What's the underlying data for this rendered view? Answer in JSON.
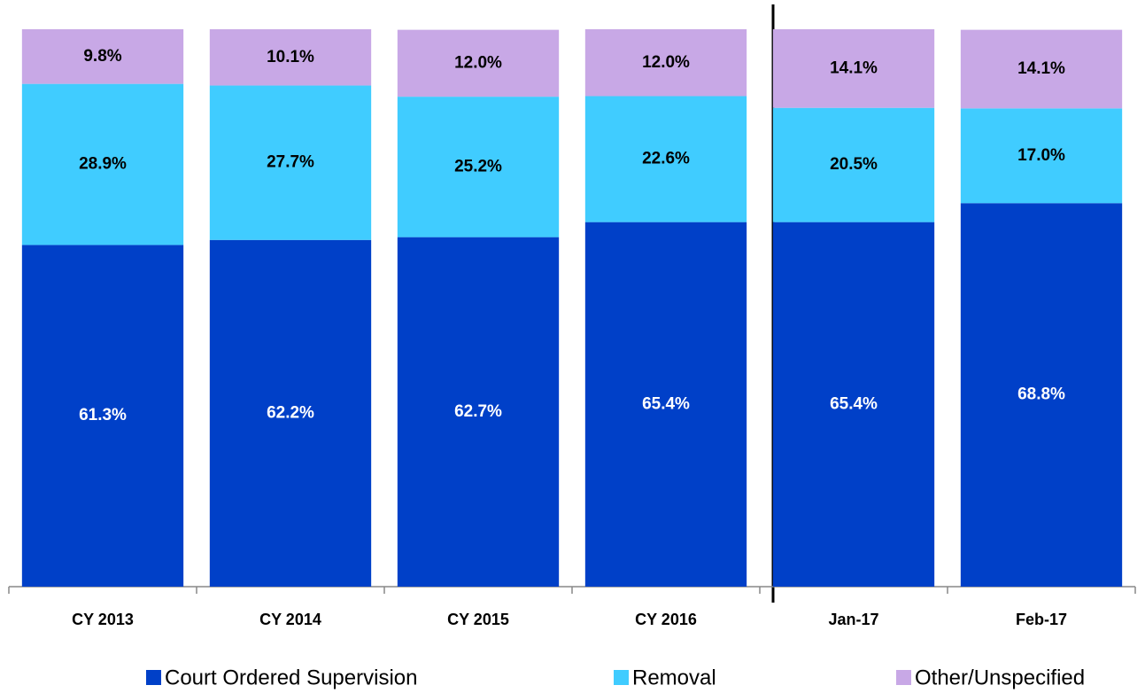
{
  "chart_data": {
    "type": "stacked_bar",
    "categories": [
      "CY 2013",
      "CY 2014",
      "CY 2015",
      "CY 2016",
      "Jan-17",
      "Feb-17"
    ],
    "series": [
      {
        "name": "Court Ordered Supervision",
        "color": "#0040c8",
        "values": [
          61.3,
          62.2,
          62.7,
          65.4,
          65.4,
          68.8
        ],
        "value_labels": [
          "61.3%",
          "62.2%",
          "62.7%",
          "65.4%",
          "65.4%",
          "68.8%"
        ]
      },
      {
        "name": "Removal",
        "color": "#40ccff",
        "values": [
          28.9,
          27.7,
          25.2,
          22.6,
          20.5,
          17.0
        ],
        "value_labels": [
          "28.9%",
          "27.7%",
          "25.2%",
          "22.6%",
          "20.5%",
          "17.0%"
        ]
      },
      {
        "name": "Other/Unspecified",
        "color": "#c8a8e6",
        "values": [
          9.8,
          10.1,
          12.0,
          12.0,
          14.1,
          14.1
        ],
        "value_labels": [
          "9.8%",
          "10.1%",
          "12.0%",
          "12.0%",
          "14.1%",
          "14.1%"
        ]
      }
    ],
    "ylim": [
      0,
      100
    ]
  }
}
